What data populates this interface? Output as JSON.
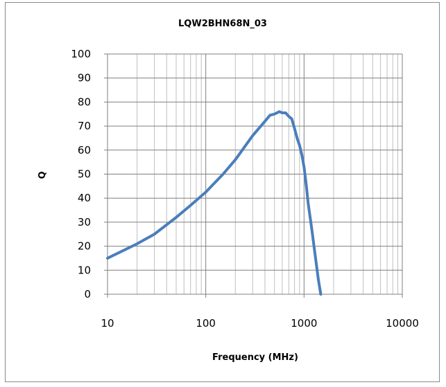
{
  "chart_data": {
    "type": "line",
    "title": "LQW2BHN68N_03",
    "xlabel": "Frequency (MHz)",
    "ylabel": "Q",
    "x_scale": "log",
    "xlim": [
      10,
      10000
    ],
    "ylim": [
      0,
      100
    ],
    "x_ticks": [
      "10",
      "100",
      "1000",
      "10000"
    ],
    "y_ticks": [
      "0",
      "10",
      "20",
      "30",
      "40",
      "50",
      "60",
      "70",
      "80",
      "90",
      "100"
    ],
    "grid": true,
    "legend": "none",
    "series": [
      {
        "color": "#4a7ebb",
        "x": [
          10,
          15,
          20,
          30,
          50,
          70,
          100,
          150,
          200,
          300,
          400,
          450,
          500,
          530,
          560,
          600,
          650,
          700,
          750,
          800,
          850,
          900,
          950,
          1000,
          1050,
          1100,
          1200,
          1300,
          1400,
          1480
        ],
        "y": [
          15,
          18.5,
          21,
          25,
          32,
          37,
          42.5,
          50,
          56,
          66,
          72,
          74.5,
          75,
          75.5,
          76,
          75.5,
          75.5,
          74,
          73,
          69,
          65,
          62,
          58,
          53,
          46,
          38,
          27,
          16,
          6,
          0
        ]
      }
    ]
  }
}
